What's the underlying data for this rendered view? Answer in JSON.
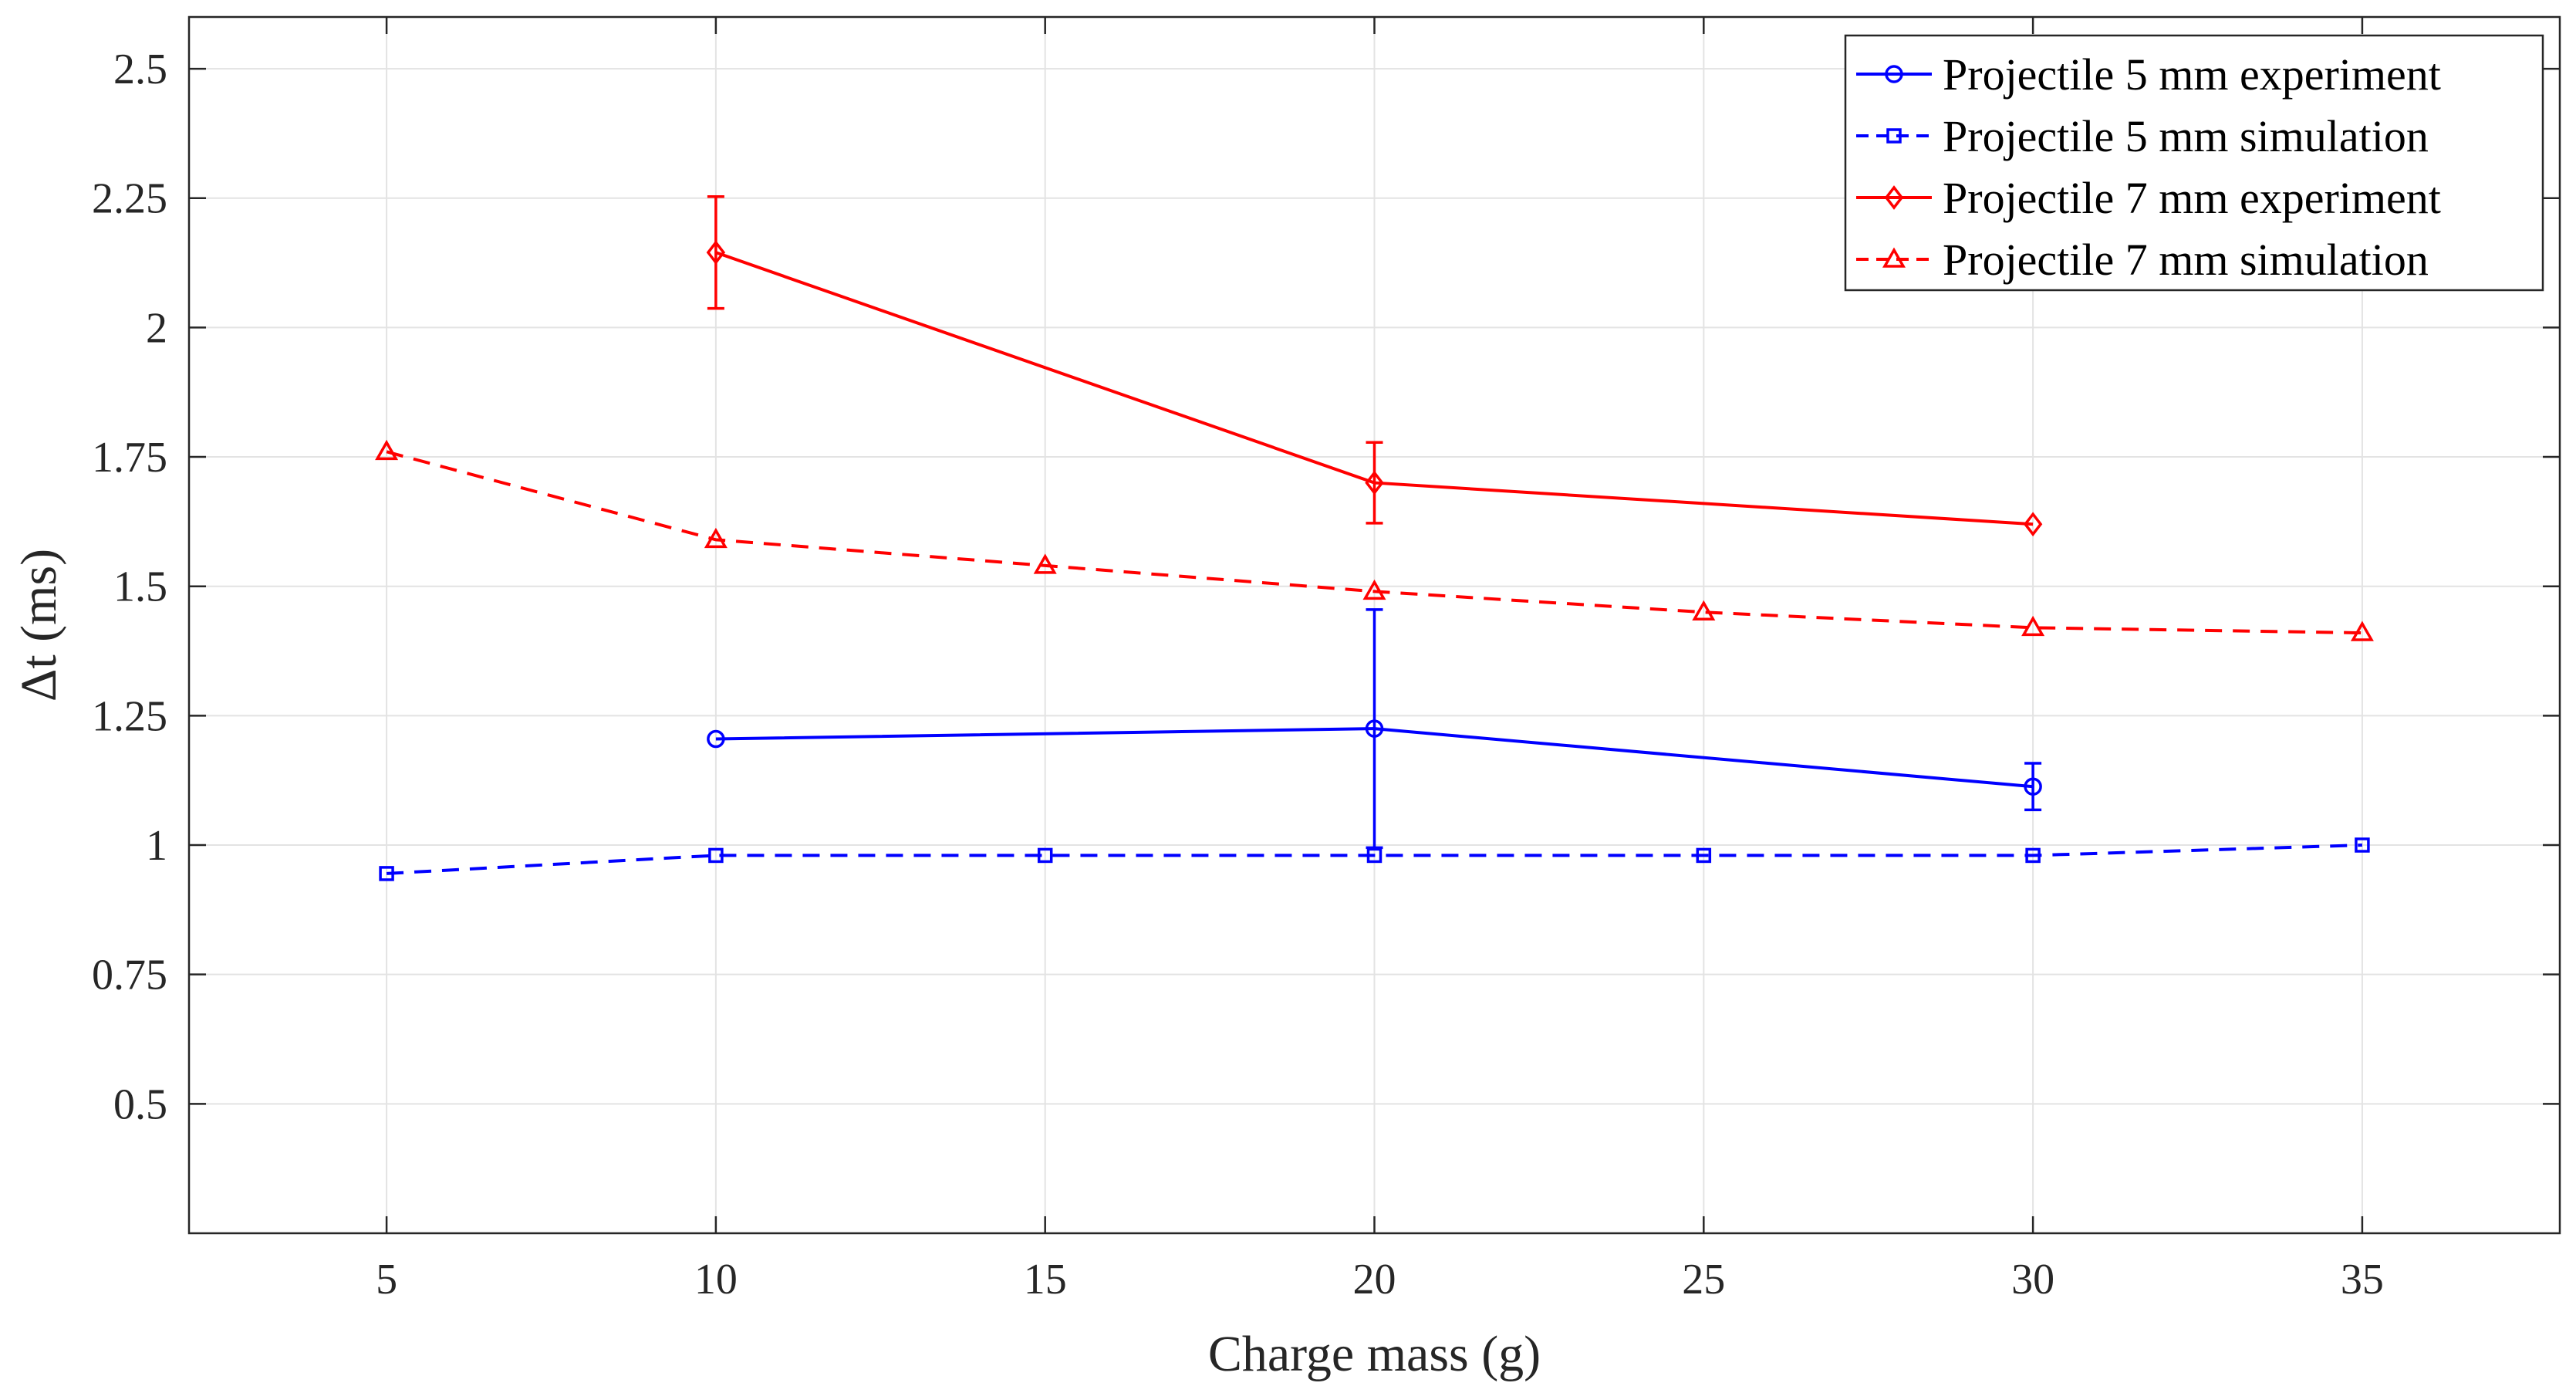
{
  "chart_data": {
    "type": "line",
    "title": "",
    "xlabel": "Charge mass (g)",
    "ylabel": "Δt (ms)",
    "xlim": [
      2,
      38
    ],
    "ylim": [
      0.25,
      2.6
    ],
    "xticks": [
      5,
      10,
      15,
      20,
      25,
      30,
      35
    ],
    "xtick_labels": [
      "5",
      "10",
      "15",
      "20",
      "25",
      "30",
      "35"
    ],
    "yticks": [
      0.5,
      0.75,
      1,
      1.25,
      1.5,
      1.75,
      2,
      2.25,
      2.5
    ],
    "ytick_labels": [
      "0.5",
      "0.75",
      "1",
      "1.25",
      "1.5",
      "1.75",
      "2",
      "2.25",
      "2.5"
    ],
    "grid": true,
    "legend_position": "top-right",
    "series": [
      {
        "name": "Projectile 5 mm experiment",
        "color": "#0000ff",
        "line_style": "solid",
        "marker": "circle",
        "x": [
          10,
          20,
          30
        ],
        "y": [
          1.205,
          1.225,
          1.113
        ],
        "error": [
          null,
          0.23,
          0.045
        ]
      },
      {
        "name": "Projectile 5 mm simulation",
        "color": "#0000ff",
        "line_style": "dashed",
        "marker": "square",
        "x": [
          5,
          10,
          15,
          20,
          25,
          30,
          35
        ],
        "y": [
          0.945,
          0.98,
          0.98,
          0.98,
          0.98,
          0.98,
          1.0
        ],
        "error": null
      },
      {
        "name": "Projectile 7 mm experiment",
        "color": "#ff0000",
        "line_style": "solid",
        "marker": "diamond",
        "x": [
          10,
          20,
          30
        ],
        "y": [
          2.145,
          1.7,
          1.62
        ],
        "error": [
          0.108,
          0.078,
          null
        ]
      },
      {
        "name": "Projectile 7 mm simulation",
        "color": "#ff0000",
        "line_style": "dashed",
        "marker": "triangle",
        "x": [
          5,
          10,
          15,
          20,
          25,
          30,
          35
        ],
        "y": [
          1.76,
          1.59,
          1.54,
          1.49,
          1.45,
          1.42,
          1.41
        ],
        "error": null
      }
    ]
  }
}
